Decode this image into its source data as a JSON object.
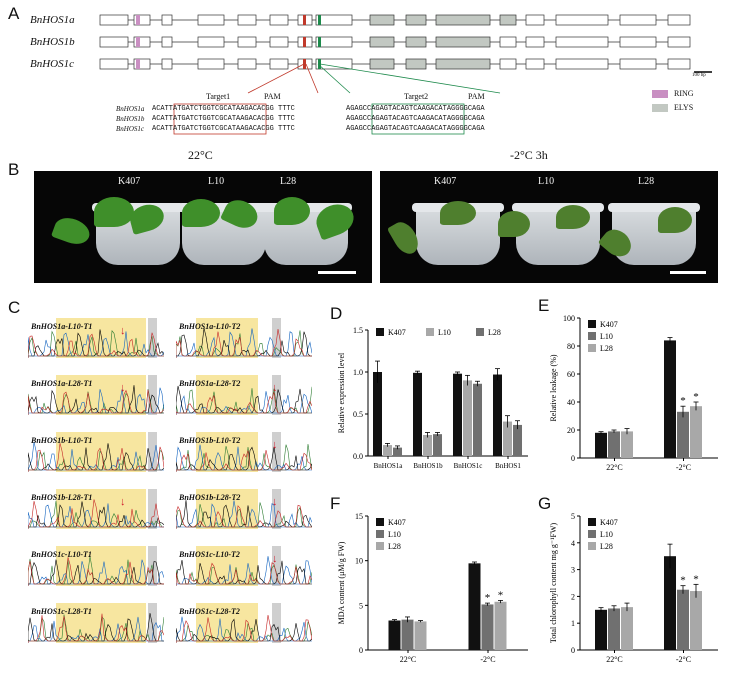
{
  "panel_labels": {
    "a": "A",
    "b": "B",
    "c": "C",
    "d": "D",
    "e": "E",
    "f": "F",
    "g": "G"
  },
  "panel_a": {
    "genes": [
      "BnHOS1a",
      "BnHOS1b",
      "BnHOS1c"
    ],
    "scale_label": "100 bp",
    "target1_label": "Target1",
    "target2_label": "Target2",
    "pam_label": "PAM",
    "seq_names": [
      "BnHOS1a",
      "BnHOS1b",
      "BnHOS1c"
    ],
    "target1_seqs": [
      "ACATTATGATCTGGTCGCATAAGACACGG TTTC",
      "ACATTATGATCTGGTCGCATAAGACACGG TTTC",
      "ACATTATGATCTGGTCGCATAAGACACGG TTTC"
    ],
    "target2_seqs": [
      "AGAGCCAGAGTACAGTCAAGACATAGGGGCAGA",
      "AGAGCCAGAGTACAGTCAAGACATAGGGGCAGA",
      "AGAGCCAGAGTACAGTCAAGACATAGGGGCAGA"
    ],
    "legend": [
      {
        "label": "RING",
        "color": "#c98fc2"
      },
      {
        "label": "ELYS",
        "color": "#c2c8c2"
      }
    ]
  },
  "panel_b": {
    "left_title": "22°C",
    "right_title": "-2°C 3h",
    "plants": [
      "K407",
      "L10",
      "L28"
    ]
  },
  "panel_c": {
    "traces": [
      "BnHOS1a-L10-T1",
      "BnHOS1a-L10-T2",
      "BnHOS1a-L28-T1",
      "BnHOS1a-L28-T2",
      "BnHOS1b-L10-T1",
      "BnHOS1b-L10-T2",
      "BnHOS1b-L28-T1",
      "BnHOS1b-L28-T2",
      "BnHOS1c-L10-T1",
      "BnHOS1c-L10-T2",
      "BnHOS1c-L28-T1",
      "BnHOS1c-L28-T2"
    ]
  },
  "chart_data": [
    {
      "id": "D",
      "type": "bar",
      "ylabel": "Relative expression level",
      "categories": [
        "BnHOS1a",
        "BnHOS1b",
        "BnHOS1c",
        "BnHOS1"
      ],
      "ylim": [
        0,
        1.5
      ],
      "yticks": [
        "0.0",
        "0.5",
        "1.0",
        "1.5"
      ],
      "legend_position": "top",
      "series": [
        {
          "name": "K407",
          "color": "#111111",
          "values": [
            1.0,
            0.99,
            0.98,
            0.97
          ],
          "errors": [
            0.13,
            0.02,
            0.02,
            0.07
          ]
        },
        {
          "name": "L10",
          "color": "#a8a8a8",
          "values": [
            0.13,
            0.25,
            0.9,
            0.41
          ],
          "errors": [
            0.02,
            0.03,
            0.06,
            0.07
          ]
        },
        {
          "name": "L28",
          "color": "#707070",
          "values": [
            0.1,
            0.26,
            0.86,
            0.37
          ],
          "errors": [
            0.02,
            0.02,
            0.03,
            0.05
          ]
        }
      ]
    },
    {
      "id": "E",
      "type": "bar",
      "ylabel": "Relative leakage (%)",
      "categories": [
        "22°C",
        "-2°C"
      ],
      "ylim": [
        0,
        100
      ],
      "yticks": [
        "0",
        "20",
        "40",
        "60",
        "80",
        "100"
      ],
      "legend_position": "top-left",
      "series": [
        {
          "name": "K407",
          "color": "#111111",
          "values": [
            18,
            84
          ],
          "errors": [
            0.8,
            2
          ]
        },
        {
          "name": "L10",
          "color": "#707070",
          "values": [
            19,
            33
          ],
          "errors": [
            1,
            4
          ]
        },
        {
          "name": "L28",
          "color": "#a8a8a8",
          "values": [
            19,
            37
          ],
          "errors": [
            2,
            3
          ]
        }
      ],
      "significance": [
        {
          "category": 1,
          "series": 1,
          "label": "*"
        },
        {
          "category": 1,
          "series": 2,
          "label": "*"
        }
      ]
    },
    {
      "id": "F",
      "type": "bar",
      "ylabel": "MDA content (μM/g FW)",
      "categories": [
        "22°C",
        "-2°C"
      ],
      "ylim": [
        0,
        15
      ],
      "yticks": [
        "0",
        "5",
        "10",
        "15"
      ],
      "legend_position": "top-left",
      "series": [
        {
          "name": "K407",
          "color": "#111111",
          "values": [
            3.3,
            9.7
          ],
          "errors": [
            0.1,
            0.15
          ]
        },
        {
          "name": "L10",
          "color": "#707070",
          "values": [
            3.4,
            5.1
          ],
          "errors": [
            0.3,
            0.15
          ]
        },
        {
          "name": "L28",
          "color": "#a8a8a8",
          "values": [
            3.2,
            5.4
          ],
          "errors": [
            0.1,
            0.15
          ]
        }
      ],
      "significance": [
        {
          "category": 1,
          "series": 1,
          "label": "*"
        },
        {
          "category": 1,
          "series": 2,
          "label": "*"
        }
      ]
    },
    {
      "id": "G",
      "type": "bar",
      "ylabel": "Total chlorophyll content mg g⁻¹FW)",
      "categories": [
        "22°C",
        "-2°C"
      ],
      "ylim": [
        0,
        5
      ],
      "yticks": [
        "0",
        "1",
        "2",
        "3",
        "4",
        "5"
      ],
      "legend_position": "top-left",
      "series": [
        {
          "name": "K407",
          "color": "#111111",
          "values": [
            1.5,
            3.5
          ],
          "errors": [
            0.08,
            0.45
          ]
        },
        {
          "name": "L10",
          "color": "#707070",
          "values": [
            1.55,
            2.25
          ],
          "errors": [
            0.1,
            0.15
          ]
        },
        {
          "name": "L28",
          "color": "#a8a8a8",
          "values": [
            1.6,
            2.2
          ],
          "errors": [
            0.15,
            0.25
          ]
        }
      ],
      "significance": [
        {
          "category": 1,
          "series": 1,
          "label": "*"
        },
        {
          "category": 1,
          "series": 2,
          "label": "*"
        }
      ]
    }
  ]
}
